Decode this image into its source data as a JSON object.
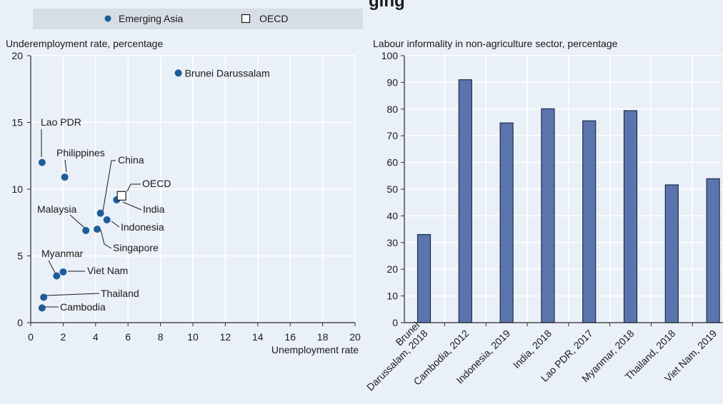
{
  "title_fragment": "ging",
  "legend": {
    "items": [
      {
        "label": "Emerging Asia",
        "marker": "dot"
      },
      {
        "label": "OECD",
        "marker": "square"
      }
    ]
  },
  "colors": {
    "page_background": "#e9f0f7",
    "marker_fill": "#1f5c99",
    "bar_fill": "#5b74ad",
    "bar_stroke": "#1c2d4f",
    "legend_box": "#d6dde5",
    "grid": "#ffffff",
    "axis": "#2a2a2a"
  },
  "chart_data": [
    {
      "type": "scatter",
      "ylabel": "Underemployment rate, percentage",
      "xlabel": "Unemployment rate",
      "xlim": [
        0,
        20
      ],
      "ylim": [
        0,
        20
      ],
      "xticks": [
        0,
        2,
        4,
        6,
        8,
        10,
        12,
        14,
        16,
        18,
        20
      ],
      "yticks": [
        0,
        5,
        10,
        15,
        20
      ],
      "grid": true,
      "series": [
        {
          "name": "Emerging Asia",
          "points": [
            {
              "label": "Brunei Darussalam",
              "x": 9.1,
              "y": 18.7
            },
            {
              "label": "Lao PDR",
              "x": 0.7,
              "y": 12.0
            },
            {
              "label": "Philippines",
              "x": 2.1,
              "y": 10.9
            },
            {
              "label": "China",
              "x": 4.3,
              "y": 8.2
            },
            {
              "label": "India",
              "x": 5.3,
              "y": 9.2
            },
            {
              "label": "Indonesia",
              "x": 4.7,
              "y": 7.7
            },
            {
              "label": "Malaysia",
              "x": 3.4,
              "y": 6.9
            },
            {
              "label": "Singapore",
              "x": 4.1,
              "y": 7.0
            },
            {
              "label": "Myanmar",
              "x": 1.6,
              "y": 3.5
            },
            {
              "label": "Viet Nam",
              "x": 2.0,
              "y": 3.8
            },
            {
              "label": "Thailand",
              "x": 0.8,
              "y": 1.9
            },
            {
              "label": "Cambodia",
              "x": 0.7,
              "y": 1.1
            }
          ]
        },
        {
          "name": "OECD",
          "points": [
            {
              "label": "OECD",
              "x": 5.6,
              "y": 9.5
            }
          ]
        }
      ]
    },
    {
      "type": "bar",
      "ylabel": "Labour informality in non-agriculture sector, percentage",
      "ylim": [
        0,
        100
      ],
      "yticks": [
        0,
        10,
        20,
        30,
        40,
        50,
        60,
        70,
        80,
        90,
        100
      ],
      "grid": true,
      "categories": [
        [
          "Brunei",
          "Darussalam, 2018"
        ],
        [
          "Cambodia, 2012"
        ],
        [
          "Indonesia, 2019"
        ],
        [
          "India, 2018"
        ],
        [
          "Lao PDR, 2017"
        ],
        [
          "Myanmar, 2018"
        ],
        [
          "Thailand, 2018"
        ],
        [
          "Viet Nam, 2019"
        ]
      ],
      "values": [
        33,
        91,
        74.8,
        80.1,
        75.6,
        79.4,
        51.6,
        53.9
      ]
    }
  ]
}
